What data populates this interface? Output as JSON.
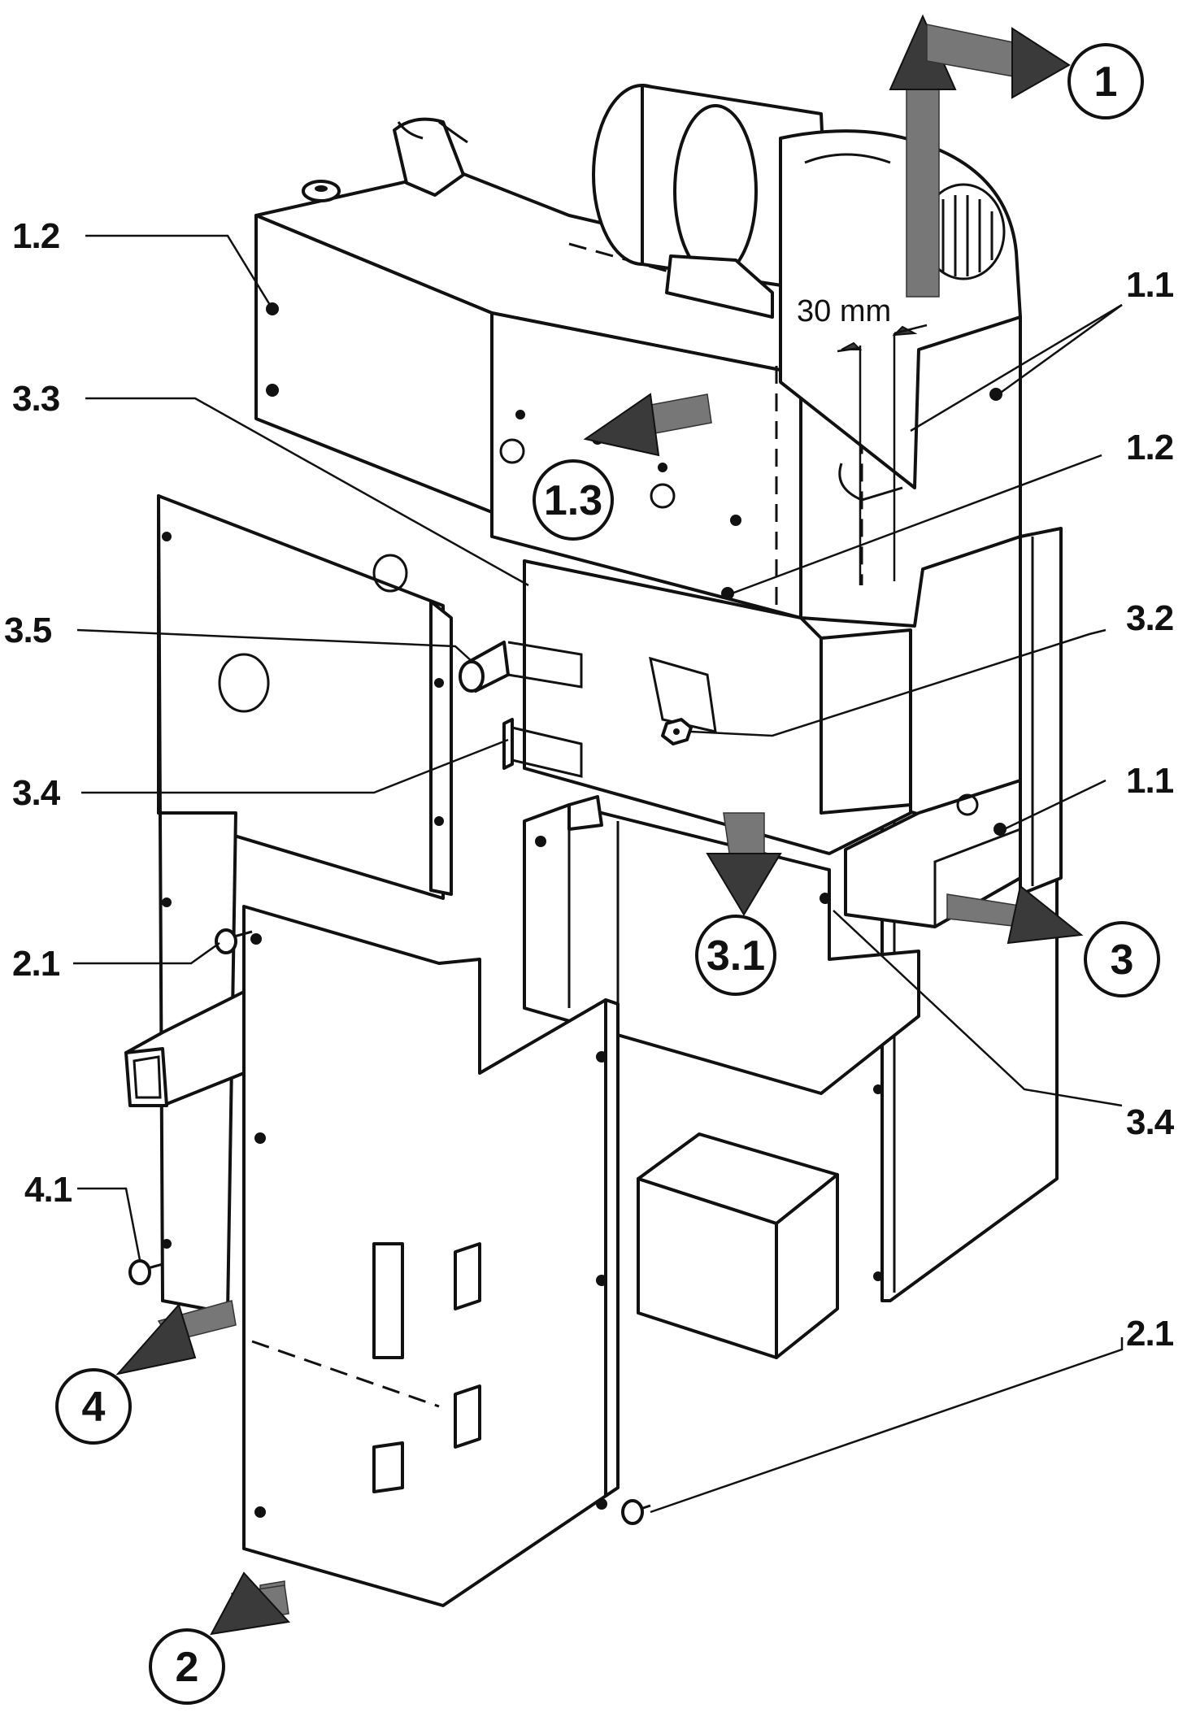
{
  "diagram": {
    "part_labels": [
      {
        "id": "l-1-2-left",
        "text": "1.2"
      },
      {
        "id": "l-3-3",
        "text": "3.3"
      },
      {
        "id": "l-3-5",
        "text": "3.5"
      },
      {
        "id": "l-3-4-left",
        "text": "3.4"
      },
      {
        "id": "l-2-1-left",
        "text": "2.1"
      },
      {
        "id": "l-4-1",
        "text": "4.1"
      },
      {
        "id": "l-1-1-top",
        "text": "1.1"
      },
      {
        "id": "l-1-2-right",
        "text": "1.2"
      },
      {
        "id": "l-3-2",
        "text": "3.2"
      },
      {
        "id": "l-1-1-bottom",
        "text": "1.1"
      },
      {
        "id": "l-3-4-right",
        "text": "3.4"
      },
      {
        "id": "l-2-1-right",
        "text": "2.1"
      }
    ],
    "step_circles": [
      {
        "id": "c1",
        "text": "1"
      },
      {
        "id": "c1-3",
        "text": "1.3"
      },
      {
        "id": "c3-1",
        "text": "3.1"
      },
      {
        "id": "c3",
        "text": "3"
      },
      {
        "id": "c4",
        "text": "4"
      },
      {
        "id": "c2",
        "text": "2"
      }
    ],
    "dimension_label": "30 mm"
  }
}
